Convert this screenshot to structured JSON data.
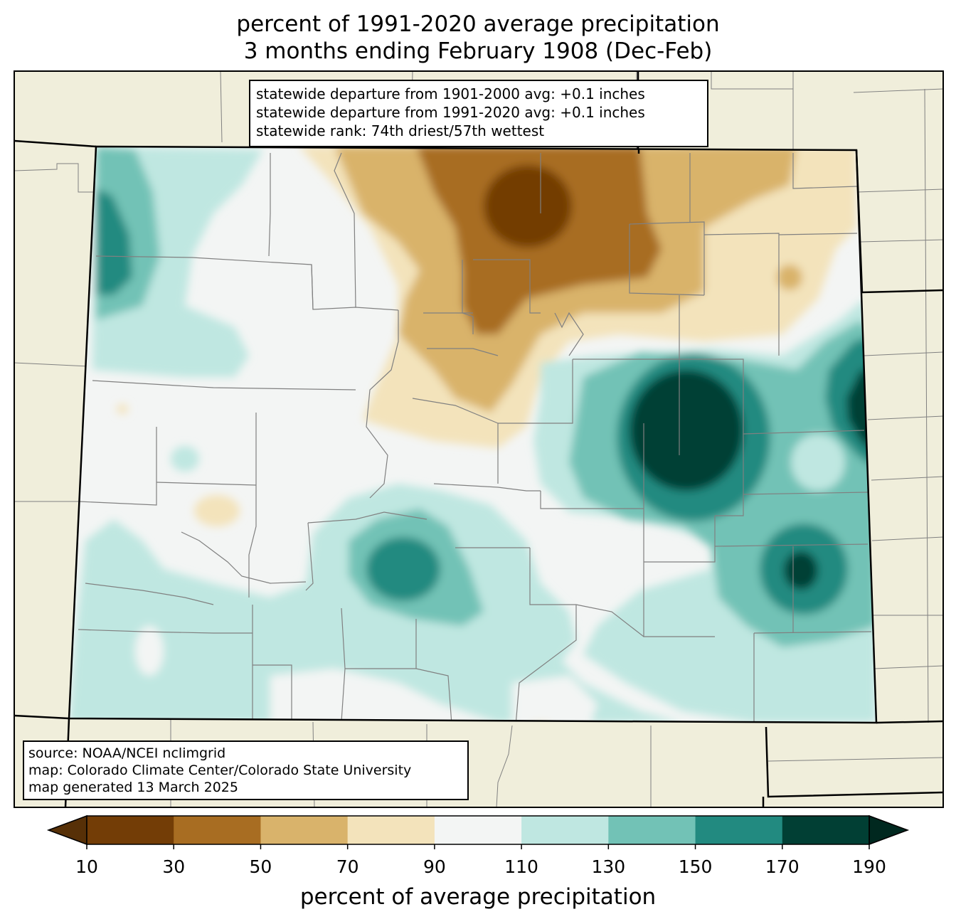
{
  "title": {
    "line1": "percent of 1991-2020 average precipitation",
    "line2": "3 months ending February 1908 (Dec-Feb)"
  },
  "stats": {
    "line1": "statewide departure from 1901-2000 avg: +0.1 inches",
    "line2": "statewide departure from 1991-2020 avg: +0.1 inches",
    "line3": "statewide rank: 74th driest/57th wettest"
  },
  "credits": {
    "source": "source: NOAA/NCEI nclimgrid",
    "map": "map: Colorado Climate Center/Colorado State University",
    "generated": "map generated 13 March 2025"
  },
  "colorbar": {
    "label": "percent of average precipitation",
    "ticks": [
      "10",
      "30",
      "50",
      "70",
      "90",
      "110",
      "130",
      "150",
      "170",
      "190"
    ],
    "colors": [
      "#733d06",
      "#a86d22",
      "#d9b36b",
      "#f3e3bb",
      "#f3f5f4",
      "#bfe7e1",
      "#72c2b6",
      "#228a80",
      "#013f34"
    ],
    "under_color": "#573007",
    "over_color": "#00281f"
  },
  "map_colors": {
    "background": "#f0eedb",
    "county_lines": "#808080",
    "state_lines": "#000000"
  }
}
